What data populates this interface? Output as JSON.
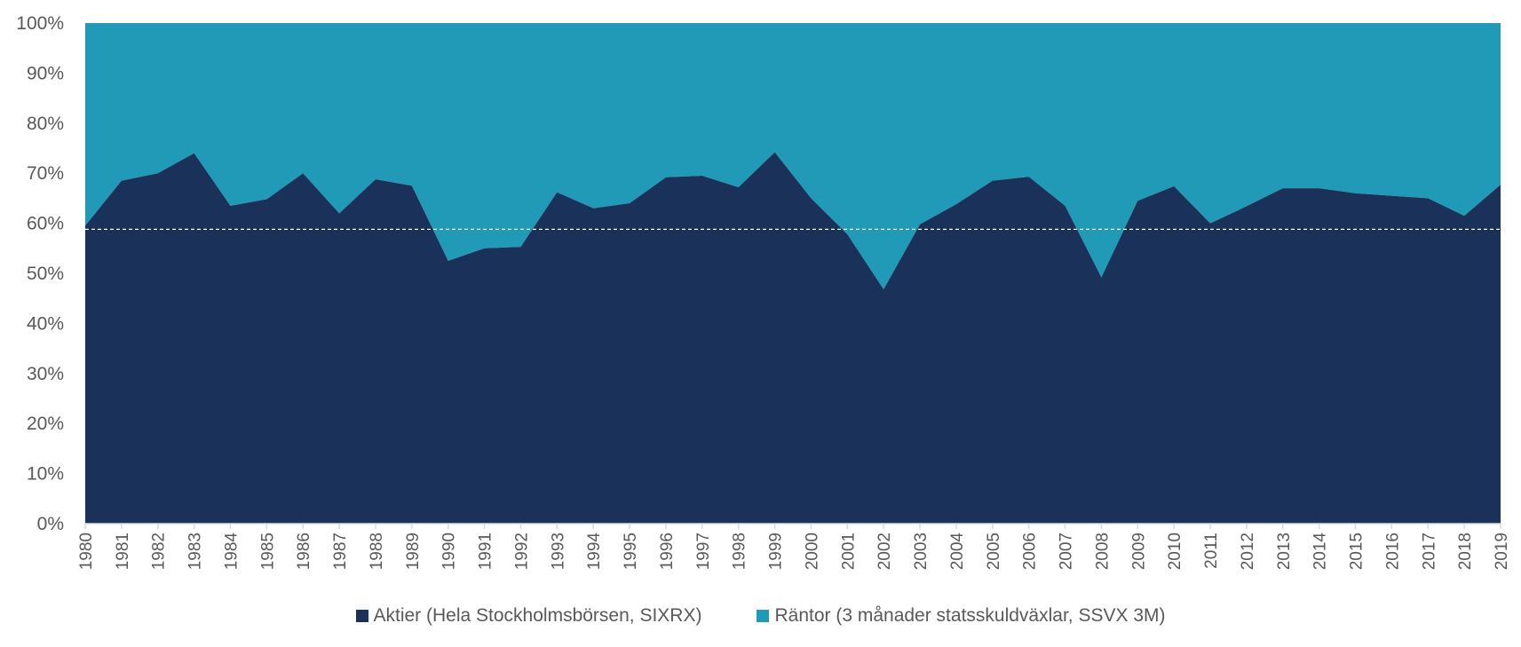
{
  "chart_data": {
    "type": "area",
    "stacked": "percent",
    "years": [
      "1980",
      "1981",
      "1982",
      "1983",
      "1984",
      "1985",
      "1986",
      "1987",
      "1988",
      "1989",
      "1990",
      "1991",
      "1992",
      "1993",
      "1994",
      "1995",
      "1996",
      "1997",
      "1998",
      "1999",
      "2000",
      "2001",
      "2002",
      "2003",
      "2004",
      "2005",
      "2006",
      "2007",
      "2008",
      "2009",
      "2010",
      "2011",
      "2012",
      "2013",
      "2014",
      "2015",
      "2016",
      "2017",
      "2018",
      "2019"
    ],
    "series": [
      {
        "name": "Aktier (Hela Stockholmsbörsen, SIXRX)",
        "color": "#1a325a",
        "values": [
          59.5,
          68.5,
          70,
          74,
          63.5,
          64.8,
          70,
          62,
          68.8,
          67.5,
          52.5,
          55,
          55.3,
          66.2,
          63,
          64,
          69.2,
          69.5,
          67.2,
          74.2,
          65,
          57.8,
          46.8,
          59.8,
          63.8,
          68.5,
          69.3,
          63.5,
          49.2,
          64.5,
          67.4,
          60,
          63.4,
          67,
          67,
          66,
          65.5,
          65,
          61.5,
          67.7
        ]
      },
      {
        "name": "Räntor (3 månader statsskuldväxlar, SSVX 3M)",
        "color": "#219ab7",
        "values": [
          40.5,
          31.5,
          30,
          26,
          36.5,
          35.2,
          30,
          38,
          31.2,
          32.5,
          47.5,
          45,
          44.7,
          33.8,
          37,
          36,
          30.8,
          30.5,
          32.8,
          25.8,
          35,
          42.2,
          53.2,
          40.2,
          36.2,
          31.5,
          30.7,
          36.5,
          50.8,
          35.5,
          32.6,
          40,
          36.6,
          33,
          33,
          34,
          34.5,
          35,
          38.5,
          32.3
        ]
      }
    ],
    "reference_line": {
      "value": 58.8,
      "style": "dashed",
      "color": "#ffffff"
    },
    "y_ticks": [
      "0%",
      "10%",
      "20%",
      "30%",
      "40%",
      "50%",
      "60%",
      "70%",
      "80%",
      "90%",
      "100%"
    ],
    "ylim": [
      0,
      100
    ],
    "title": "",
    "xlabel": "",
    "ylabel": "",
    "legend_position": "bottom",
    "grid": false
  }
}
